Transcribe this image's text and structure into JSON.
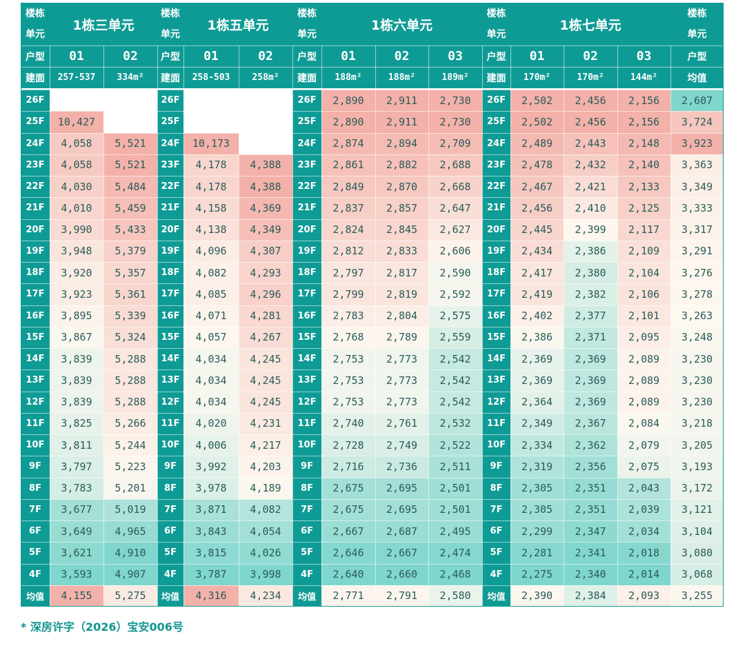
{
  "header": {
    "building_unit_label_line1": "楼栋",
    "building_unit_label_line2": "单元",
    "unit_type_label": "户型",
    "area_label": "建面",
    "avg_header_line3": "户型",
    "avg_header_line4": "均值",
    "avg_row_label": "均值"
  },
  "units": [
    {
      "name": "1栋三单元",
      "types": [
        "01",
        "02"
      ],
      "areas": [
        "257-537",
        "334m²"
      ]
    },
    {
      "name": "1栋五单元",
      "types": [
        "01",
        "02"
      ],
      "areas": [
        "258-503",
        "258m²"
      ]
    },
    {
      "name": "1栋六单元",
      "types": [
        "01",
        "02",
        "03"
      ],
      "areas": [
        "188m²",
        "188m²",
        "189m²"
      ]
    },
    {
      "name": "1栋七单元",
      "types": [
        "01",
        "02",
        "03"
      ],
      "areas": [
        "170m²",
        "170m²",
        "144m²"
      ]
    }
  ],
  "floors": [
    "26F",
    "25F",
    "24F",
    "23F",
    "22F",
    "21F",
    "20F",
    "19F",
    "18F",
    "17F",
    "16F",
    "15F",
    "14F",
    "13F",
    "12F",
    "11F",
    "10F",
    "9F",
    "8F",
    "7F",
    "6F",
    "5F",
    "4F"
  ],
  "rows": [
    [
      "",
      "",
      "",
      "",
      "2,890",
      "2,911",
      "2,730",
      "2,502",
      "2,456",
      "2,156",
      "2,607"
    ],
    [
      "10,427",
      "",
      "",
      "",
      "2,890",
      "2,911",
      "2,730",
      "2,502",
      "2,456",
      "2,156",
      "3,724"
    ],
    [
      "4,058",
      "5,521",
      "10,173",
      "",
      "2,874",
      "2,894",
      "2,709",
      "2,489",
      "2,443",
      "2,148",
      "3,923"
    ],
    [
      "4,058",
      "5,521",
      "4,178",
      "4,388",
      "2,861",
      "2,882",
      "2,688",
      "2,478",
      "2,432",
      "2,140",
      "3,363"
    ],
    [
      "4,030",
      "5,484",
      "4,178",
      "4,388",
      "2,849",
      "2,870",
      "2,668",
      "2,467",
      "2,421",
      "2,133",
      "3,349"
    ],
    [
      "4,010",
      "5,459",
      "4,158",
      "4,369",
      "2,837",
      "2,857",
      "2,647",
      "2,456",
      "2,410",
      "2,125",
      "3,333"
    ],
    [
      "3,990",
      "5,433",
      "4,138",
      "4,349",
      "2,824",
      "2,845",
      "2,627",
      "2,445",
      "2,399",
      "2,117",
      "3,317"
    ],
    [
      "3,948",
      "5,379",
      "4,096",
      "4,307",
      "2,812",
      "2,833",
      "2,606",
      "2,434",
      "2,386",
      "2,109",
      "3,291"
    ],
    [
      "3,920",
      "5,357",
      "4,082",
      "4,293",
      "2,797",
      "2,817",
      "2,590",
      "2,417",
      "2,380",
      "2,104",
      "3,276"
    ],
    [
      "3,923",
      "5,361",
      "4,085",
      "4,296",
      "2,799",
      "2,819",
      "2,592",
      "2,419",
      "2,382",
      "2,106",
      "3,278"
    ],
    [
      "3,895",
      "5,339",
      "4,071",
      "4,281",
      "2,783",
      "2,804",
      "2,575",
      "2,402",
      "2,377",
      "2,101",
      "3,263"
    ],
    [
      "3,867",
      "5,324",
      "4,057",
      "4,267",
      "2,768",
      "2,789",
      "2,559",
      "2,386",
      "2,371",
      "2,095",
      "3,248"
    ],
    [
      "3,839",
      "5,288",
      "4,034",
      "4,245",
      "2,753",
      "2,773",
      "2,542",
      "2,369",
      "2,369",
      "2,089",
      "3,230"
    ],
    [
      "3,839",
      "5,288",
      "4,034",
      "4,245",
      "2,753",
      "2,773",
      "2,542",
      "2,369",
      "2,369",
      "2,089",
      "3,230"
    ],
    [
      "3,839",
      "5,288",
      "4,034",
      "4,245",
      "2,753",
      "2,773",
      "2,542",
      "2,364",
      "2,369",
      "2,089",
      "3,230"
    ],
    [
      "3,825",
      "5,266",
      "4,020",
      "4,231",
      "2,740",
      "2,761",
      "2,532",
      "2,349",
      "2,367",
      "2,084",
      "3,218"
    ],
    [
      "3,811",
      "5,244",
      "4,006",
      "4,217",
      "2,728",
      "2,749",
      "2,522",
      "2,334",
      "2,362",
      "2,079",
      "3,205"
    ],
    [
      "3,797",
      "5,223",
      "3,992",
      "4,203",
      "2,716",
      "2,736",
      "2,511",
      "2,319",
      "2,356",
      "2,075",
      "3,193"
    ],
    [
      "3,783",
      "5,201",
      "3,978",
      "4,189",
      "2,675",
      "2,695",
      "2,501",
      "2,305",
      "2,351",
      "2,043",
      "3,172"
    ],
    [
      "3,677",
      "5,019",
      "3,871",
      "4,082",
      "2,675",
      "2,695",
      "2,501",
      "2,305",
      "2,351",
      "2,039",
      "3,121"
    ],
    [
      "3,649",
      "4,965",
      "3,843",
      "4,054",
      "2,667",
      "2,687",
      "2,495",
      "2,299",
      "2,347",
      "2,034",
      "3,104"
    ],
    [
      "3,621",
      "4,910",
      "3,815",
      "4,026",
      "2,646",
      "2,667",
      "2,474",
      "2,281",
      "2,341",
      "2,018",
      "3,080"
    ],
    [
      "3,593",
      "4,907",
      "3,787",
      "3,998",
      "2,640",
      "2,660",
      "2,468",
      "2,275",
      "2,340",
      "2,014",
      "3,068"
    ]
  ],
  "averages": [
    "4,155",
    "5,275",
    "4,316",
    "4,234",
    "2,771",
    "2,791",
    "2,580",
    "2,390",
    "2,384",
    "2,093",
    "3,255"
  ],
  "footnote": "* 深房许字（2026）宝安006号",
  "colors": {
    "header_teal": "#0f9b95",
    "heat_low": "#7fd6cd",
    "heat_mid": "#fdf8f0",
    "heat_high": "#f3b1a9",
    "footnote": "#12968f"
  }
}
